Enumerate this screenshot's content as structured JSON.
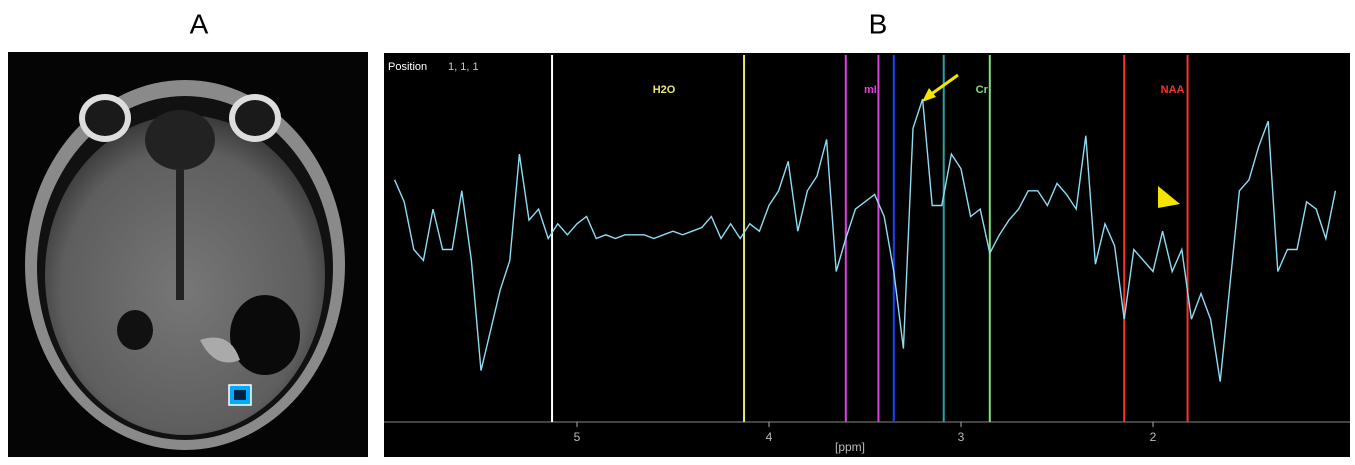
{
  "panel_labels": [
    "A",
    "B"
  ],
  "chart_data": {
    "type": "line",
    "position_label": "Position",
    "position_value": "1, 1, 1",
    "x_label": "[ppm]",
    "xlim": [
      6,
      1
    ],
    "ylim": [
      0,
      100
    ],
    "xticks": [
      5,
      4,
      3,
      2
    ],
    "markers": [
      {
        "x": 5.13,
        "color": "#ffffff"
      },
      {
        "x": 4.13,
        "color": "#e8e870",
        "label": "H2O"
      },
      {
        "x": 3.6,
        "color": "#e040e0"
      },
      {
        "x": 3.43,
        "color": "#e040e0",
        "label": "mI"
      },
      {
        "x": 3.35,
        "color": "#2040ff"
      },
      {
        "x": 3.09,
        "color": "#30a0a0"
      },
      {
        "x": 2.85,
        "color": "#80e080",
        "label": "Cr"
      },
      {
        "x": 2.15,
        "color": "#ff3030"
      },
      {
        "x": 1.82,
        "color": "#ff3030",
        "label": "NAA"
      }
    ],
    "series": [
      {
        "color": "#8fdcf2",
        "x": [
          5.95,
          5.9,
          5.85,
          5.8,
          5.75,
          5.7,
          5.65,
          5.6,
          5.55,
          5.5,
          5.45,
          5.4,
          5.35,
          5.3,
          5.25,
          5.2,
          5.15,
          5.1,
          5.05,
          5.0,
          4.95,
          4.9,
          4.85,
          4.8,
          4.75,
          4.7,
          4.65,
          4.6,
          4.55,
          4.5,
          4.45,
          4.4,
          4.35,
          4.3,
          4.25,
          4.2,
          4.15,
          4.1,
          4.05,
          4.0,
          3.95,
          3.9,
          3.85,
          3.8,
          3.75,
          3.7,
          3.65,
          3.6,
          3.55,
          3.5,
          3.45,
          3.4,
          3.35,
          3.3,
          3.25,
          3.2,
          3.15,
          3.1,
          3.05,
          3.0,
          2.95,
          2.9,
          2.85,
          2.8,
          2.75,
          2.7,
          2.65,
          2.6,
          2.55,
          2.5,
          2.45,
          2.4,
          2.35,
          2.3,
          2.25,
          2.2,
          2.15,
          2.1,
          2.05,
          2.0,
          1.95,
          1.9,
          1.85,
          1.8,
          1.75,
          1.7,
          1.65,
          1.6,
          1.55,
          1.5,
          1.45,
          1.4,
          1.35,
          1.3,
          1.25,
          1.2,
          1.15,
          1.1,
          1.05
        ],
        "values": [
          66,
          60,
          47,
          44,
          58,
          47,
          47,
          63,
          44,
          14,
          25,
          36,
          44,
          73,
          55,
          58,
          50,
          54,
          51,
          54,
          56,
          50,
          51,
          50,
          51,
          51,
          51,
          50,
          51,
          52,
          51,
          52,
          53,
          56,
          50,
          54,
          50,
          54,
          52,
          59,
          63,
          71,
          52,
          63,
          67,
          77,
          41,
          50,
          58,
          60,
          62,
          56,
          41,
          20,
          80,
          88,
          59,
          59,
          73,
          69,
          56,
          58,
          46,
          51,
          55,
          58,
          63,
          63,
          59,
          65,
          62,
          58,
          78,
          43,
          54,
          48,
          28,
          47,
          44,
          41,
          52,
          41,
          47,
          28,
          35,
          28,
          11,
          37,
          63,
          66,
          75,
          82,
          41,
          47,
          47,
          60,
          58,
          50,
          63
        ]
      }
    ]
  }
}
